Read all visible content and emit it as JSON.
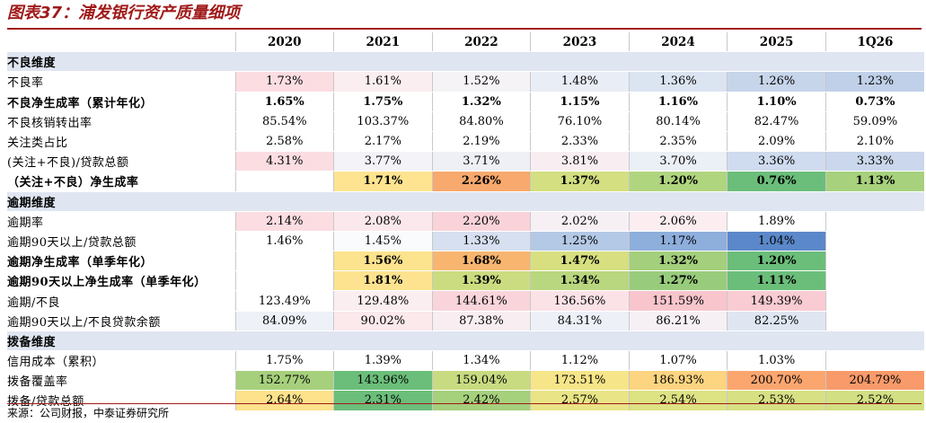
{
  "title": "图表37：浦发银行资产质量细项",
  "columns": [
    "2020",
    "2021",
    "2022",
    "2023",
    "2024",
    "2025",
    "1Q26"
  ],
  "rows": [
    {
      "type": "section",
      "label": "不良维度"
    },
    {
      "type": "row",
      "label": "不良率",
      "bold": false,
      "values": [
        "1.73%",
        "1.61%",
        "1.52%",
        "1.48%",
        "1.36%",
        "1.26%",
        "1.23%"
      ],
      "colors": [
        "#fbdde2",
        "#fbeef0",
        "#f6f3f7",
        "#e9edf5",
        "#dbe4f1",
        "#c7d5ea",
        "#c0d0e8"
      ]
    },
    {
      "type": "row",
      "label": "不良净生成率（累计年化）",
      "bold": true,
      "values": [
        "1.65%",
        "1.75%",
        "1.32%",
        "1.15%",
        "1.16%",
        "1.10%",
        "0.73%"
      ],
      "colors": [
        "",
        "",
        "",
        "",
        "",
        "",
        ""
      ]
    },
    {
      "type": "row",
      "label": "不良核销转出率",
      "bold": false,
      "values": [
        "85.54%",
        "103.37%",
        "84.80%",
        "76.10%",
        "80.14%",
        "82.47%",
        "59.09%"
      ],
      "colors": [
        "",
        "",
        "",
        "",
        "",
        "",
        ""
      ]
    },
    {
      "type": "row",
      "label": "关注类占比",
      "bold": false,
      "values": [
        "2.58%",
        "2.17%",
        "2.19%",
        "2.33%",
        "2.35%",
        "2.09%",
        "2.10%"
      ],
      "colors": [
        "",
        "",
        "",
        "",
        "",
        "",
        ""
      ]
    },
    {
      "type": "row",
      "label": "(关注+不良)/贷款总额",
      "bold": false,
      "values": [
        "4.31%",
        "3.77%",
        "3.71%",
        "3.81%",
        "3.70%",
        "3.36%",
        "3.33%"
      ],
      "colors": [
        "#fbdde2",
        "#f4f3f8",
        "#eef0f6",
        "#f8eef2",
        "#ebeff6",
        "#cfdbee",
        "#cad7ec"
      ]
    },
    {
      "type": "row",
      "label": "（关注+不良）净生成率",
      "bold": true,
      "values": [
        "",
        "1.71%",
        "2.26%",
        "1.37%",
        "1.20%",
        "0.76%",
        "1.13%"
      ],
      "colors": [
        "#ffffff",
        "#fee490",
        "#f7a96e",
        "#d3df80",
        "#b0d57f",
        "#6bbe7a",
        "#a7d17d"
      ]
    },
    {
      "type": "section",
      "label": "逾期维度"
    },
    {
      "type": "row",
      "label": "逾期率",
      "bold": false,
      "values": [
        "2.14%",
        "2.08%",
        "2.20%",
        "2.02%",
        "2.06%",
        "1.89%",
        ""
      ],
      "colors": [
        "#fbdde2",
        "#fbe8ec",
        "#f9d3d9",
        "#f6f0f5",
        "#fbedf0",
        "#ffffff",
        "#ffffff"
      ]
    },
    {
      "type": "row",
      "label": "逾期90天以上/贷款总额",
      "bold": false,
      "values": [
        "1.46%",
        "1.45%",
        "1.33%",
        "1.25%",
        "1.17%",
        "1.04%",
        ""
      ],
      "colors": [
        "#ffffff",
        "#fafbfd",
        "#d6e0f0",
        "#b4c9e6",
        "#8eaedc",
        "#5b88ca",
        "#ffffff"
      ]
    },
    {
      "type": "row",
      "label": "逾期净生成率（单季年化）",
      "bold": true,
      "values": [
        "",
        "1.56%",
        "1.68%",
        "1.47%",
        "1.32%",
        "1.20%",
        ""
      ],
      "colors": [
        "#ffffff",
        "#fce38d",
        "#f7b56f",
        "#d7df80",
        "#a4cf7c",
        "#6bbe7a",
        "#ffffff"
      ]
    },
    {
      "type": "row",
      "label": "逾期90天以上净生成率（单季年化）",
      "bold": true,
      "values": [
        "",
        "1.81%",
        "1.39%",
        "1.34%",
        "1.27%",
        "1.11%",
        ""
      ],
      "colors": [
        "#ffffff",
        "#fde38f",
        "#cbdc80",
        "#b9d77f",
        "#98cc7c",
        "#6bbe7a",
        "#ffffff"
      ]
    },
    {
      "type": "row",
      "label": "逾期/不良",
      "bold": false,
      "values": [
        "123.49%",
        "129.48%",
        "144.61%",
        "136.56%",
        "151.59%",
        "149.39%",
        ""
      ],
      "colors": [
        "#ffffff",
        "#fbeef0",
        "#f9d5db",
        "#fbe2e6",
        "#f8c5cd",
        "#f9cbd2",
        "#ffffff"
      ]
    },
    {
      "type": "row",
      "label": "逾期90天以上/不良贷款余额",
      "bold": false,
      "values": [
        "84.09%",
        "90.02%",
        "87.38%",
        "84.31%",
        "86.21%",
        "82.25%",
        ""
      ],
      "colors": [
        "#eef1f7",
        "#fbe9ec",
        "#f8eef2",
        "#edf0f7",
        "#f6f0f5",
        "#dfe6f2",
        "#ffffff"
      ]
    },
    {
      "type": "section",
      "label": "拨备维度"
    },
    {
      "type": "row",
      "label": "信用成本（累积）",
      "bold": false,
      "values": [
        "1.75%",
        "1.39%",
        "1.34%",
        "1.12%",
        "1.07%",
        "1.03%",
        ""
      ],
      "colors": [
        "",
        "",
        "",
        "",
        "",
        "",
        ""
      ]
    },
    {
      "type": "row",
      "label": "拨备覆盖率",
      "bold": false,
      "values": [
        "152.77%",
        "143.96%",
        "159.04%",
        "173.51%",
        "186.93%",
        "200.70%",
        "204.79%"
      ],
      "colors": [
        "#a6d07c",
        "#6bbe7a",
        "#c8db80",
        "#f7e589",
        "#fdd480",
        "#fca66f",
        "#f89a6a"
      ]
    },
    {
      "type": "row",
      "label": "拨备/贷款总额",
      "bold": false,
      "values": [
        "2.64%",
        "2.31%",
        "2.42%",
        "2.57%",
        "2.54%",
        "2.53%",
        "2.52%"
      ],
      "colors": [
        "#fde28b",
        "#6bbe7a",
        "#a5d07c",
        "#e9e485",
        "#dde283",
        "#d7e083",
        "#d2df82"
      ]
    }
  ],
  "source": "来源：公司财报，中泰证券研究所"
}
